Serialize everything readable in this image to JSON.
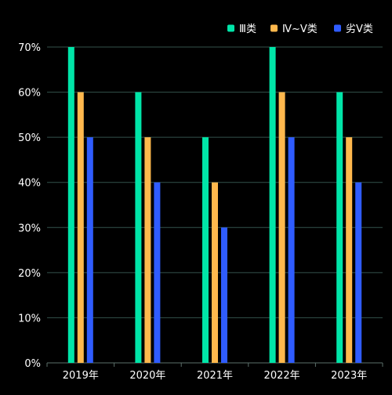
{
  "chart_data": {
    "type": "bar",
    "categories": [
      "2019年",
      "2020年",
      "2021年",
      "2022年",
      "2023年"
    ],
    "series": [
      {
        "name": "Ⅲ类",
        "color": "#00e5a8",
        "values": [
          70,
          60,
          50,
          70,
          60
        ]
      },
      {
        "name": "Ⅳ~Ⅴ类",
        "color": "#ffb84d",
        "values": [
          60,
          50,
          40,
          60,
          50
        ]
      },
      {
        "name": "劣Ⅴ类",
        "color": "#2f5cff",
        "values": [
          50,
          40,
          30,
          50,
          40
        ]
      }
    ],
    "ylim": [
      0,
      70
    ],
    "yticks": [
      "0%",
      "10%",
      "20%",
      "30%",
      "40%",
      "50%",
      "60%",
      "70%"
    ],
    "grid": true,
    "legend_position": "top-right",
    "colors": {
      "background": "#000000",
      "grid": "#33524c",
      "axis": "#5c6f6a",
      "text": "#ffffff"
    }
  }
}
